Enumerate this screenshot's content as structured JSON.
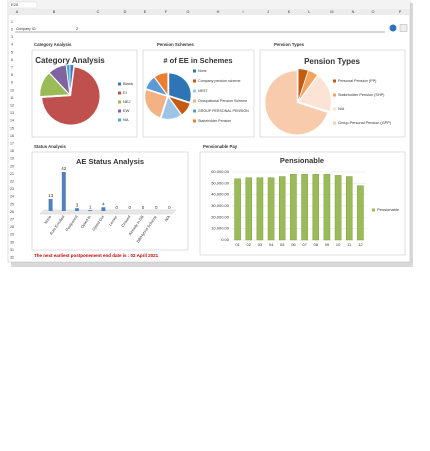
{
  "sheet": {
    "name_box": "E20",
    "columns": [
      "A",
      "B",
      "C",
      "D",
      "E",
      "F",
      "G",
      "H",
      "I",
      "J",
      "K",
      "L",
      "M",
      "N",
      "O",
      "P"
    ],
    "rows": [
      1,
      2,
      3,
      4,
      5,
      6,
      7,
      8,
      9,
      10,
      11,
      12,
      13,
      14,
      15,
      16,
      17,
      18,
      19,
      20,
      21,
      22,
      23,
      24,
      25,
      26,
      27,
      28,
      29,
      30,
      31,
      32
    ],
    "company_label": "Company ID:",
    "company_id": "2",
    "sections": [
      "Category Analysis",
      "Pension Schemes",
      "Pension Types",
      "Status Analysis",
      "Pensionable Pay"
    ],
    "note": "The next earliest postponement end date is : 02 April 2021"
  },
  "chart_data": [
    {
      "type": "pie",
      "title": "Category Analysis",
      "categories": [
        "Blank",
        "EI",
        "NEJ",
        "EW",
        "NA"
      ],
      "values": [
        2,
        72,
        14,
        10,
        2
      ],
      "colors": [
        "#4472c4",
        "#c0504d",
        "#9bbb59",
        "#8064a2",
        "#4bacc6"
      ]
    },
    {
      "type": "pie",
      "title": "# of EE in Schemes",
      "categories": [
        "None",
        "Company pension scheme",
        "NEST",
        "Occupational Pension Scheme",
        "GROUP PERSONAL PENSION",
        "Stakeholder Pension"
      ],
      "values": [
        30,
        10,
        15,
        25,
        10,
        10
      ],
      "colors": [
        "#2e75b6",
        "#c55a11",
        "#9dc3e6",
        "#f4b183",
        "#5b9bd5",
        "#ed7d31"
      ]
    },
    {
      "type": "pie",
      "title": "Pension Types",
      "categories": [
        "Personal Pension (PP)",
        "Stakeholder Pension (SHP)",
        "N/A",
        "Group Personal Pension (GPP)"
      ],
      "values": [
        5,
        5,
        20,
        70
      ],
      "colors": [
        "#c55a11",
        "#f4a460",
        "#fbe3d6",
        "#f8cbad"
      ]
    },
    {
      "type": "bar",
      "title": "AE Status Analysis",
      "categories": [
        "None",
        "Auto Enrolled",
        "Postponed",
        "Opted In",
        "Opted Out",
        "Leaver",
        "Ceased",
        "Already in DB",
        "DB/Hybrid Scheme",
        "N/A"
      ],
      "values": [
        13,
        42,
        3,
        1,
        4,
        0,
        0,
        0,
        0,
        0
      ],
      "color": "#4f81bd"
    },
    {
      "type": "bar",
      "title": "Pensionable",
      "categories": [
        "01",
        "02",
        "03",
        "04",
        "05",
        "06",
        "07",
        "08",
        "09",
        "10",
        "11",
        "12"
      ],
      "values": [
        54000,
        55000,
        55000,
        55000,
        56000,
        58000,
        58000,
        58000,
        58000,
        57000,
        56000,
        48000
      ],
      "color": "#9bbb59",
      "legend": "Pensionable",
      "ylim": [
        0,
        60000
      ],
      "yticks": [
        {
          "value": 0,
          "label": "0.00"
        },
        {
          "value": 10000,
          "label": "10,000.00"
        },
        {
          "value": 20000,
          "label": "20,000.00"
        },
        {
          "value": 30000,
          "label": "30,000.00"
        },
        {
          "value": 40000,
          "label": "40,000.00"
        },
        {
          "value": 50000,
          "label": "50,000.00"
        },
        {
          "value": 60000,
          "label": "60,000.00"
        }
      ]
    }
  ]
}
